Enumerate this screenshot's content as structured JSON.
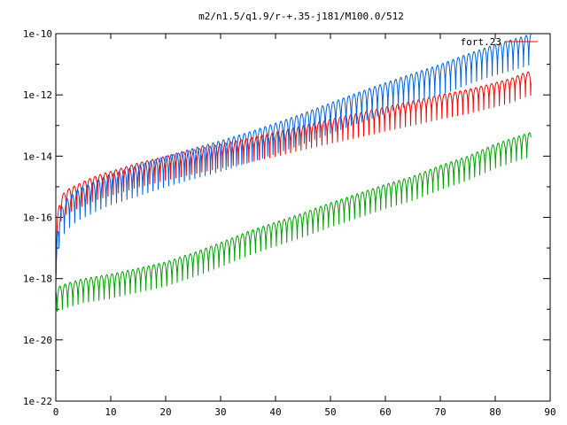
{
  "chart_data": {
    "type": "line",
    "title": "m2/n1.5/q1.9/r-+.35-j181/M100.0/512",
    "xlabel": "",
    "ylabel": "",
    "xlim": [
      0,
      90
    ],
    "ylim": [
      1e-22,
      1e-10
    ],
    "yscale": "log",
    "grid": false,
    "legend": "top-right",
    "x_ticks": [
      0,
      10,
      20,
      30,
      40,
      50,
      60,
      70,
      80,
      90
    ],
    "x_tick_labels": [
      "0",
      "10",
      "20",
      "30",
      "40",
      "50",
      "60",
      "70",
      "80",
      "90"
    ],
    "y_ticks": [
      1e-22,
      1e-20,
      1e-18,
      1e-16,
      1e-14,
      1e-12,
      1e-10
    ],
    "y_tick_labels": [
      "1e-22",
      "1e-20",
      "1e-18",
      "1e-16",
      "1e-14",
      "1e-12",
      "1e-10"
    ],
    "series": [
      {
        "name": "fort.23",
        "color": "#ff0000",
        "oscillation_depth_decades": 0.8,
        "x": [
          0,
          0.3,
          0.6,
          1,
          2,
          4,
          6,
          8,
          10,
          15,
          20,
          25,
          30,
          35,
          40,
          45,
          50,
          55,
          60,
          65,
          70,
          75,
          80,
          83,
          85,
          86.5
        ],
        "y": [
          3e-18,
          1e-16,
          2.5e-16,
          5e-16,
          8e-16,
          1.2e-15,
          1.8e-15,
          2.5e-15,
          3.2e-15,
          6e-15,
          1e-14,
          1.6e-14,
          2.5e-14,
          3.8e-14,
          6e-14,
          1e-13,
          1.6e-13,
          2.5e-13,
          4e-13,
          6.3e-13,
          1e-12,
          1.5e-12,
          2.5e-12,
          3.5e-12,
          5e-12,
          6e-12
        ]
      },
      {
        "name": "",
        "color": "#0060e0",
        "oscillation_depth_decades": 1.2,
        "x": [
          0,
          0.3,
          0.6,
          1,
          2,
          4,
          6,
          8,
          10,
          15,
          20,
          25,
          30,
          35,
          40,
          45,
          50,
          55,
          60,
          65,
          70,
          75,
          80,
          85,
          86.5
        ],
        "y": [
          1e-18,
          4e-17,
          1e-16,
          2e-16,
          4e-16,
          8e-16,
          1.2e-15,
          1.8e-15,
          2.6e-15,
          5e-15,
          1e-14,
          1.8e-14,
          3.2e-14,
          6e-14,
          1.2e-13,
          2.5e-13,
          5.5e-13,
          1.2e-12,
          2.5e-12,
          5e-12,
          1e-11,
          2.2e-11,
          4.5e-11,
          8e-11,
          1e-10
        ]
      },
      {
        "name": "",
        "color": "#00a000",
        "oscillation_depth_decades": 1.0,
        "x": [
          0,
          2,
          5,
          10,
          15,
          20,
          25,
          30,
          35,
          40,
          45,
          50,
          55,
          60,
          65,
          70,
          75,
          80,
          85,
          86.5
        ],
        "y": [
          5e-19,
          7e-19,
          1e-18,
          1.4e-18,
          2.2e-18,
          3.5e-18,
          7e-18,
          1.5e-17,
          3.5e-17,
          7e-17,
          1.4e-16,
          3e-16,
          6e-16,
          1.2e-15,
          2.2e-15,
          5e-15,
          1e-14,
          2.5e-14,
          5e-14,
          6e-14
        ]
      }
    ]
  }
}
